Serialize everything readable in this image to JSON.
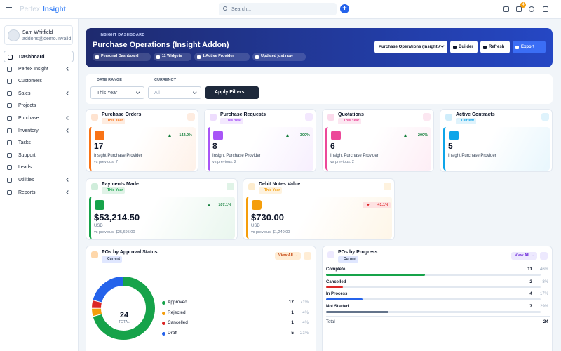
{
  "header": {
    "brand_first": "Perfex",
    "brand_second": "Insight",
    "search_placeholder": "Search...",
    "task_badge": "4"
  },
  "sidebar": {
    "user_name": "Sam Whitfield",
    "user_email": "addons@demo.invalid",
    "menu": [
      {
        "label": "Dashboard",
        "active": true
      },
      {
        "label": "Perfex Insight",
        "has_submenu": true
      },
      {
        "label": "Customers"
      },
      {
        "label": "Sales",
        "has_submenu": true
      },
      {
        "label": "Projects"
      },
      {
        "label": "Purchase",
        "has_submenu": true
      },
      {
        "label": "Inventory",
        "has_submenu": true
      },
      {
        "label": "Tasks"
      },
      {
        "label": "Support"
      },
      {
        "label": "Leads"
      },
      {
        "label": "Utilities",
        "has_submenu": true
      },
      {
        "label": "Reports",
        "has_submenu": true
      }
    ]
  },
  "banner": {
    "kicker": "INSIGHT DASHBOARD",
    "title": "Purchase Operations (Insight Addon)",
    "tags": [
      "Personal Dashboard",
      "11 Widgets",
      "1 Active Provider",
      "Updated just now"
    ],
    "dashboard_select": "Purchase Operations (Insight Addon)",
    "buttons": [
      "Builder",
      "Refresh",
      "Export"
    ]
  },
  "filters": {
    "date_range_label": "DATE RANGE",
    "date_range_value": "This Year",
    "currency_label": "CURRENCY",
    "currency_value": "All",
    "apply": "Apply Filters"
  },
  "kpis": [
    {
      "title": "Purchase Orders",
      "period": "This Year",
      "value": "17",
      "label": "Insight Purchase Provider",
      "change": "142.9%",
      "trend": "up",
      "previous": "vs previous: 7",
      "color": "#f97316"
    },
    {
      "title": "Purchase Requests",
      "period": "This Year",
      "value": "8",
      "label": "Insight Purchase Provider",
      "change": "300%",
      "trend": "up",
      "previous": "vs previous: 2",
      "color": "#a855f7"
    },
    {
      "title": "Quotations",
      "period": "This Year",
      "value": "6",
      "label": "Insight Purchase Provider",
      "change": "200%",
      "trend": "up",
      "previous": "vs previous: 2",
      "color": "#ec4899"
    },
    {
      "title": "Active Contracts",
      "period": "Current",
      "value": "5",
      "label": "Insight Purchase Provider",
      "color": "#0ea5e9"
    },
    {
      "title": "Payments Made",
      "period": "This Year",
      "value": "$53,214.50",
      "label": "USD",
      "change": "107.1%",
      "trend": "up",
      "previous": "vs previous: $25,695.00",
      "color": "#16a34a"
    },
    {
      "title": "Debit Notes Value",
      "period": "This Year",
      "value": "$730.00",
      "label": "USD",
      "change": "41.1%",
      "trend": "down",
      "previous": "vs previous: $1,240.00",
      "color": "#f59e0b"
    }
  ],
  "approval": {
    "title": "POs by Approval Status",
    "period": "Current",
    "view_all": "View All →",
    "total": "24",
    "total_label": "TOTAL",
    "segments": [
      {
        "name": "Approved",
        "count": 17,
        "percent_label": "71%",
        "color": "#16a34a"
      },
      {
        "name": "Rejected",
        "count": 1,
        "percent_label": "4%",
        "color": "#f59e0b"
      },
      {
        "name": "Cancelled",
        "count": 1,
        "percent_label": "4%",
        "color": "#dc2626"
      },
      {
        "name": "Draft",
        "count": 5,
        "percent_label": "21%",
        "color": "#2563eb"
      }
    ]
  },
  "progress": {
    "title": "POs by Progress",
    "period": "Current",
    "view_all": "View All →",
    "total_label": "Total",
    "total": "24",
    "rows": [
      {
        "name": "Complete",
        "count": 11,
        "percent": 46,
        "percent_label": "46%",
        "color": "#16a34a"
      },
      {
        "name": "Cancelled",
        "count": 2,
        "percent": 8,
        "percent_label": "8%",
        "color": "#dc2626"
      },
      {
        "name": "In Process",
        "count": 4,
        "percent": 17,
        "percent_label": "17%",
        "color": "#2563eb"
      },
      {
        "name": "Not Started",
        "count": 7,
        "percent": 29,
        "percent_label": "29%",
        "color": "#64748b"
      }
    ]
  }
}
